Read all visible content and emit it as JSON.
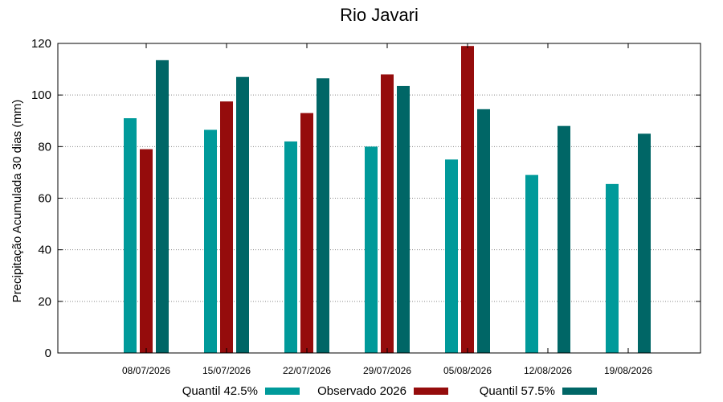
{
  "chart_data": {
    "type": "bar",
    "title": "Rio Javari",
    "xlabel": "",
    "ylabel": "Precipitação Acumulada 30 dias (mm)",
    "ylim": [
      0,
      120
    ],
    "yticks": [
      0,
      20,
      40,
      60,
      80,
      100,
      120
    ],
    "grid": true,
    "legend_position": "bottom",
    "categories": [
      "08/07/2026",
      "15/07/2026",
      "22/07/2026",
      "29/07/2026",
      "05/08/2026",
      "12/08/2026",
      "19/08/2026"
    ],
    "series": [
      {
        "name": "Quantil 42.5%",
        "color": "#009a9a",
        "values": [
          91,
          86.5,
          82,
          80,
          75,
          69,
          65.5
        ]
      },
      {
        "name": "Observado 2026",
        "color": "#950c0c",
        "values": [
          79,
          97.5,
          93,
          108,
          119,
          null,
          null
        ]
      },
      {
        "name": "Quantil 57.5%",
        "color": "#006666",
        "values": [
          113.5,
          107,
          106.5,
          103.5,
          94.5,
          88,
          85
        ]
      }
    ]
  }
}
